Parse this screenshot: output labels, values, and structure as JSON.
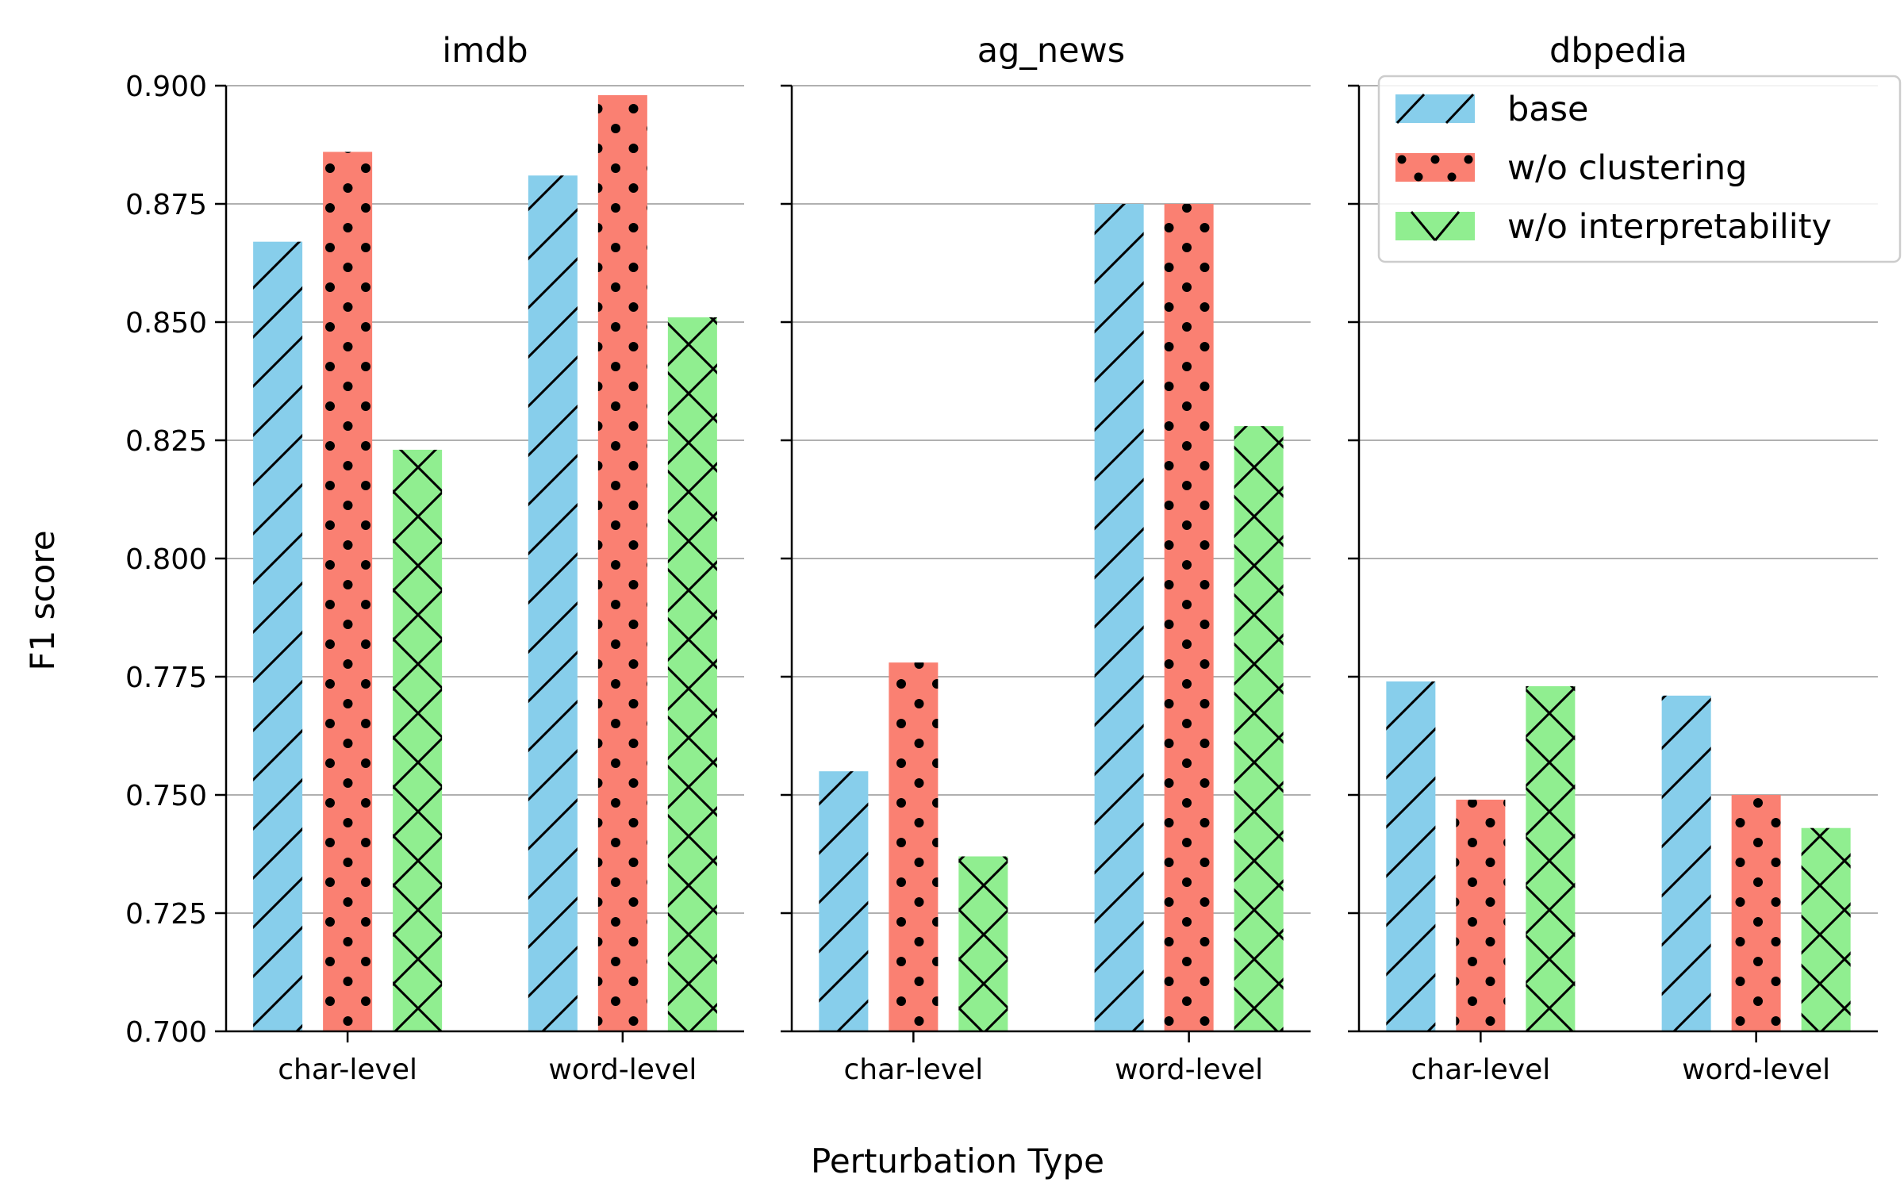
{
  "chart_data": {
    "type": "bar",
    "ylabel": "F1 score",
    "xlabel": "Perturbation Type",
    "ylim": [
      0.7,
      0.9
    ],
    "yticks": [
      "0.700",
      "0.725",
      "0.750",
      "0.775",
      "0.800",
      "0.825",
      "0.850",
      "0.875",
      "0.900"
    ],
    "grid": "horizontal",
    "legend_position": "top-right",
    "categories": [
      "char-level",
      "word-level"
    ],
    "series_styles": [
      {
        "name": "base",
        "color": "#87CEEB",
        "hatch": "diagonal"
      },
      {
        "name": "w/o clustering",
        "color": "#FA8072",
        "hatch": "dots"
      },
      {
        "name": "w/o interpretability",
        "color": "#90EE90",
        "hatch": "cross"
      }
    ],
    "panels": [
      {
        "title": "imdb",
        "series": [
          {
            "name": "base",
            "values": [
              0.867,
              0.881
            ]
          },
          {
            "name": "w/o clustering",
            "values": [
              0.886,
              0.898
            ]
          },
          {
            "name": "w/o interpretability",
            "values": [
              0.823,
              0.851
            ]
          }
        ]
      },
      {
        "title": "ag_news",
        "series": [
          {
            "name": "base",
            "values": [
              0.755,
              0.875
            ]
          },
          {
            "name": "w/o clustering",
            "values": [
              0.778,
              0.875
            ]
          },
          {
            "name": "w/o interpretability",
            "values": [
              0.737,
              0.828
            ]
          }
        ]
      },
      {
        "title": "dbpedia",
        "series": [
          {
            "name": "base",
            "values": [
              0.774,
              0.771
            ]
          },
          {
            "name": "w/o clustering",
            "values": [
              0.749,
              0.75
            ]
          },
          {
            "name": "w/o interpretability",
            "values": [
              0.773,
              0.743
            ]
          }
        ]
      }
    ]
  }
}
